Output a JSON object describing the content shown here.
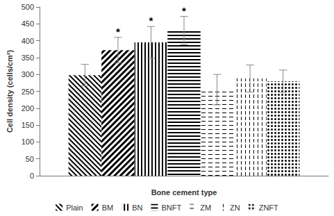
{
  "chart_data": {
    "type": "bar",
    "x_label": "Bone cement type",
    "y_label": "Cell density (cells/cm²)",
    "categories": [
      null
    ],
    "series": [
      {
        "name": "Plain",
        "color": "#000000",
        "values": [
          298
        ],
        "errors": [
          32
        ]
      },
      {
        "name": "BM",
        "color": "#000000",
        "values": [
          372
        ],
        "errors": [
          38
        ],
        "annotation": "*"
      },
      {
        "name": "BN",
        "color": "#000000",
        "values": [
          395
        ],
        "errors": [
          47
        ],
        "annotation": "*"
      },
      {
        "name": "BNFT",
        "color": "#000000",
        "values": [
          430
        ],
        "errors": [
          42
        ],
        "annotation": "*"
      },
      {
        "name": "ZM",
        "color": "#000000",
        "values": [
          255
        ],
        "errors": [
          45
        ]
      },
      {
        "name": "ZN",
        "color": "#000000",
        "values": [
          288
        ],
        "errors": [
          40
        ]
      },
      {
        "name": "ZNFT",
        "color": "#000000",
        "values": [
          280
        ],
        "errors": [
          33
        ]
      }
    ],
    "ylim": [
      0,
      500
    ],
    "yticks": [
      0,
      50,
      100,
      150,
      200,
      250,
      300,
      350,
      400,
      450,
      500
    ],
    "grid": false,
    "legend": "bottom",
    "tick_labels": "y"
  }
}
